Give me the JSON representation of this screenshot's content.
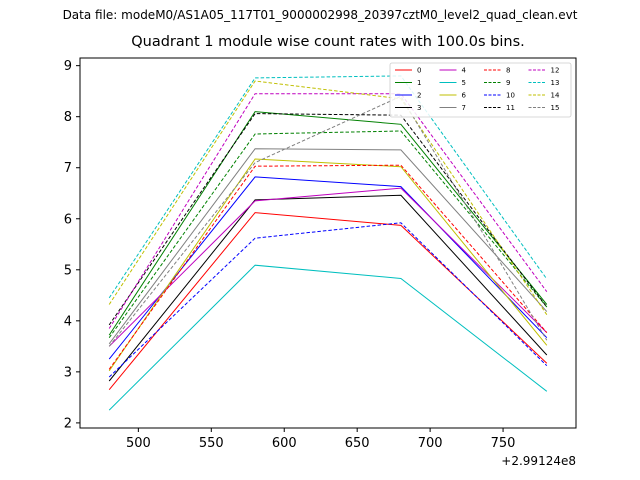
{
  "suptitle": "Data file: modeM0/AS1A05_117T01_9000002998_20397cztM0_level2_quad_clean.evt",
  "chart_data": {
    "type": "line",
    "title": "Quadrant 1 module wise count rates with 100.0s bins.",
    "x_offset_label": "+2.99124e8",
    "x": [
      480,
      580,
      680,
      780
    ],
    "xlim": [
      460,
      800
    ],
    "ylim": [
      1.9,
      9.15
    ],
    "xticks": [
      500,
      550,
      600,
      650,
      700,
      750
    ],
    "yticks": [
      2,
      3,
      4,
      5,
      6,
      7,
      8,
      9
    ],
    "legend_position": "top-right",
    "series": [
      {
        "name": "0",
        "color": "#ff0000",
        "dash": "solid",
        "values": [
          2.65,
          6.12,
          5.87,
          3.17
        ]
      },
      {
        "name": "1",
        "color": "#008000",
        "dash": "solid",
        "values": [
          3.72,
          8.1,
          7.85,
          4.32
        ]
      },
      {
        "name": "2",
        "color": "#0000ff",
        "dash": "solid",
        "values": [
          3.25,
          6.82,
          6.63,
          3.67
        ]
      },
      {
        "name": "3",
        "color": "#000000",
        "dash": "solid",
        "values": [
          2.82,
          6.37,
          6.46,
          3.33
        ]
      },
      {
        "name": "4",
        "color": "#bf00bf",
        "dash": "solid",
        "values": [
          3.5,
          6.35,
          6.6,
          3.77
        ]
      },
      {
        "name": "5",
        "color": "#00bfbf",
        "dash": "solid",
        "values": [
          2.25,
          5.09,
          4.83,
          2.62
        ]
      },
      {
        "name": "6",
        "color": "#bfbf00",
        "dash": "solid",
        "values": [
          3.02,
          7.17,
          7.02,
          3.52
        ]
      },
      {
        "name": "7",
        "color": "#808080",
        "dash": "solid",
        "values": [
          3.55,
          7.37,
          7.35,
          4.18
        ]
      },
      {
        "name": "8",
        "color": "#ff0000",
        "dash": "dashed",
        "values": [
          3.05,
          7.03,
          7.05,
          3.77
        ]
      },
      {
        "name": "9",
        "color": "#008000",
        "dash": "dashed",
        "values": [
          3.67,
          7.66,
          7.72,
          4.27
        ]
      },
      {
        "name": "10",
        "color": "#0000ff",
        "dash": "dashed",
        "values": [
          2.9,
          5.62,
          5.92,
          3.12
        ]
      },
      {
        "name": "11",
        "color": "#000000",
        "dash": "dashed",
        "values": [
          3.92,
          8.06,
          8.03,
          4.27
        ]
      },
      {
        "name": "12",
        "color": "#bf00bf",
        "dash": "dashed",
        "values": [
          3.85,
          8.45,
          8.45,
          4.57
        ]
      },
      {
        "name": "13",
        "color": "#00bfbf",
        "dash": "dashed",
        "values": [
          4.45,
          8.76,
          8.8,
          4.82
        ]
      },
      {
        "name": "14",
        "color": "#bfbf00",
        "dash": "dashed",
        "values": [
          4.32,
          8.7,
          8.35,
          4.12
        ]
      },
      {
        "name": "15",
        "color": "#808080",
        "dash": "dashed",
        "values": [
          3.5,
          7.1,
          8.4,
          3.62
        ]
      }
    ]
  }
}
